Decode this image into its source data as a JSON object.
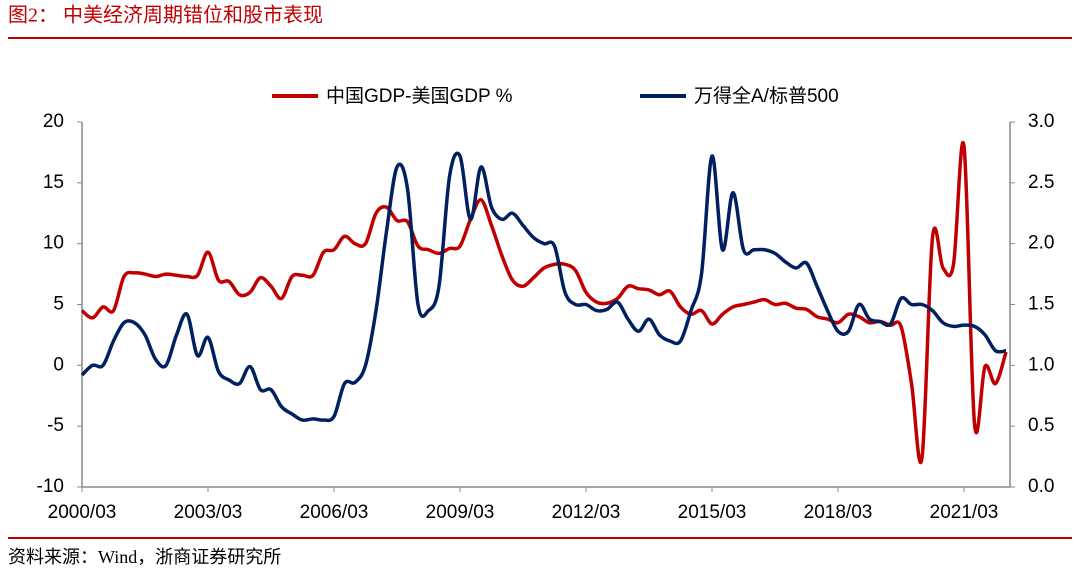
{
  "chart_data": {
    "type": "line",
    "title": "图2：  中美经济周期错位和股市表现",
    "source": "资料来源：Wind，浙商证券研究所",
    "categories": [
      "2000/03",
      null,
      null,
      null,
      null,
      null,
      null,
      null,
      null,
      null,
      null,
      null,
      "2003/03",
      null,
      null,
      null,
      null,
      null,
      null,
      null,
      null,
      null,
      null,
      null,
      "2006/03",
      null,
      null,
      null,
      null,
      null,
      null,
      null,
      null,
      null,
      null,
      null,
      "2009/03",
      null,
      null,
      null,
      null,
      null,
      null,
      null,
      null,
      null,
      null,
      null,
      "2012/03",
      null,
      null,
      null,
      null,
      null,
      null,
      null,
      null,
      null,
      null,
      null,
      "2015/03",
      null,
      null,
      null,
      null,
      null,
      null,
      null,
      null,
      null,
      null,
      null,
      "2018/03",
      null,
      null,
      null,
      null,
      null,
      null,
      null,
      null,
      null,
      null,
      null,
      "2021/03",
      null,
      null,
      null,
      null
    ],
    "series": [
      {
        "name": "中国GDP-美国GDP %",
        "color": "#c00000",
        "axis": "y",
        "values": [
          4.5,
          3.9,
          4.8,
          4.5,
          7.3,
          7.6,
          7.5,
          7.3,
          7.5,
          7.4,
          7.3,
          7.4,
          9.3,
          7.0,
          6.9,
          5.8,
          6.0,
          7.2,
          6.5,
          5.5,
          7.3,
          7.4,
          7.4,
          9.3,
          9.5,
          10.6,
          10.0,
          10.0,
          12.5,
          13.0,
          11.9,
          11.8,
          9.8,
          9.5,
          9.2,
          9.6,
          9.8,
          12.0,
          13.6,
          11.5,
          9.0,
          7.0,
          6.5,
          7.2,
          8.0,
          8.3,
          8.3,
          7.8,
          6.0,
          5.2,
          5.1,
          5.5,
          6.5,
          6.3,
          6.2,
          5.8,
          6.1,
          4.8,
          4.2,
          4.5,
          3.4,
          4.2,
          4.8,
          5.0,
          5.2,
          5.4,
          5.0,
          5.1,
          4.7,
          4.6,
          4.0,
          3.8,
          3.5,
          4.2,
          4.0,
          3.5,
          3.6,
          3.3,
          3.2,
          -1.5,
          -7.6,
          10.5,
          8.0,
          8.3,
          18.0,
          -4.8,
          -0.1,
          -1.5,
          1.1
        ]
      },
      {
        "name": "万得全A/标普500",
        "color": "#002060",
        "axis": "y2",
        "values": [
          0.92,
          1.0,
          1.0,
          1.2,
          1.35,
          1.35,
          1.25,
          1.05,
          1.0,
          1.25,
          1.42,
          1.08,
          1.23,
          0.95,
          0.88,
          0.85,
          0.99,
          0.8,
          0.8,
          0.66,
          0.6,
          0.55,
          0.56,
          0.55,
          0.58,
          0.85,
          0.86,
          1.0,
          1.45,
          2.1,
          2.63,
          2.45,
          1.5,
          1.45,
          1.65,
          2.55,
          2.72,
          2.2,
          2.63,
          2.3,
          2.2,
          2.25,
          2.15,
          2.05,
          2.0,
          1.98,
          1.6,
          1.5,
          1.5,
          1.45,
          1.46,
          1.52,
          1.38,
          1.28,
          1.38,
          1.25,
          1.2,
          1.2,
          1.45,
          1.75,
          2.72,
          1.95,
          2.42,
          1.95,
          1.95,
          1.95,
          1.92,
          1.85,
          1.8,
          1.84,
          1.65,
          1.45,
          1.28,
          1.28,
          1.5,
          1.38,
          1.36,
          1.34,
          1.55,
          1.5,
          1.5,
          1.45,
          1.35,
          1.32,
          1.33,
          1.32,
          1.25,
          1.12,
          1.12
        ]
      }
    ],
    "ylim": [
      -10,
      20
    ],
    "yticks": [
      -10,
      -5,
      0,
      5,
      10,
      15,
      20
    ],
    "y2lim": [
      0,
      3
    ],
    "y2ticks": [
      {
        "value": 0,
        "label": "0.0"
      },
      {
        "value": 0.5,
        "label": "0.5"
      },
      {
        "value": 1,
        "label": "1.0"
      },
      {
        "value": 1.5,
        "label": "1.5"
      },
      {
        "value": 2,
        "label": "2.0"
      },
      {
        "value": 2.5,
        "label": "2.5"
      },
      {
        "value": 3,
        "label": "3.0"
      }
    ],
    "legend": "top",
    "grid": false
  }
}
